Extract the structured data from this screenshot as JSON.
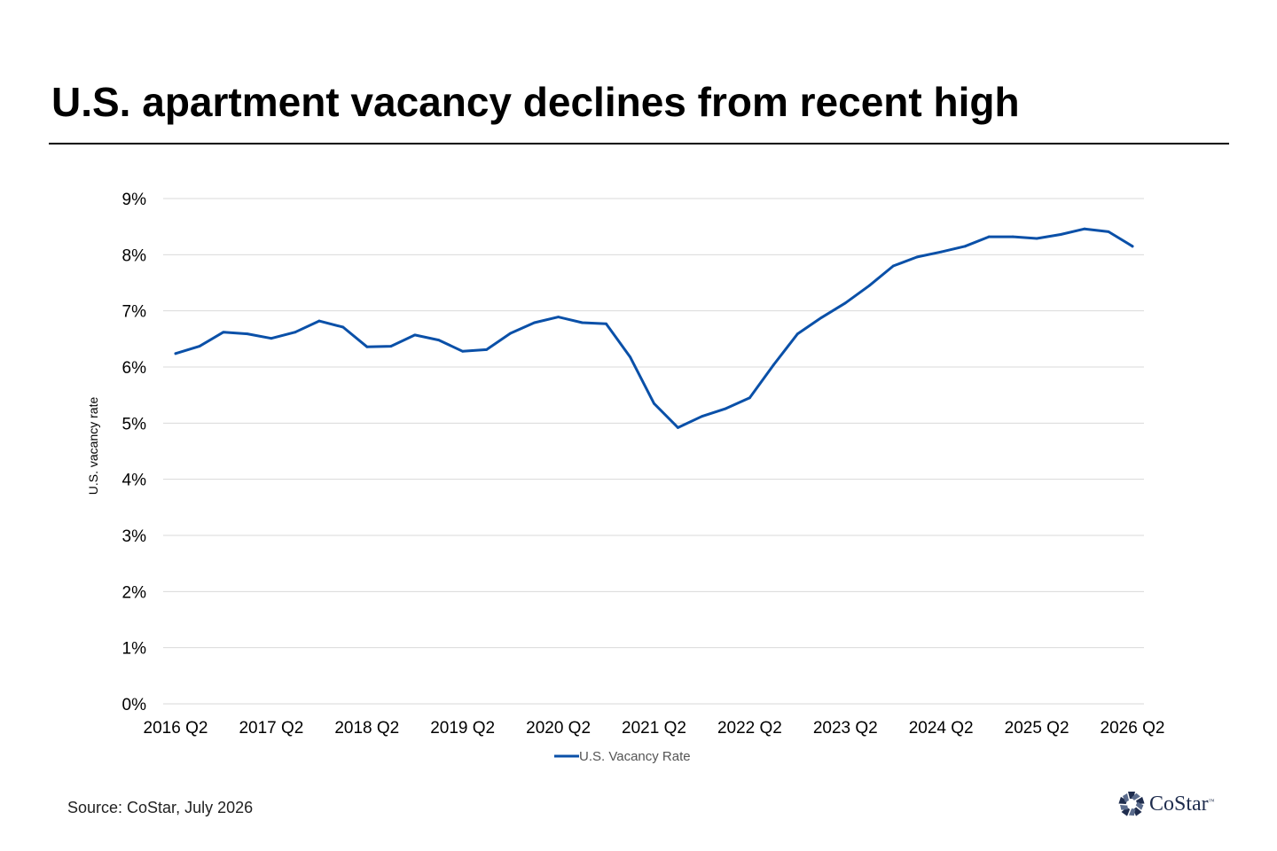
{
  "title": "U.S. apartment vacancy declines from recent high",
  "source": "Source: CoStar, July 2026",
  "logo": {
    "text": "CoStar",
    "trademark": "™",
    "icon": "costar-star-icon",
    "color": "#1f2d4e"
  },
  "colors": {
    "series": "#0a50a8",
    "grid": "#d9d9d9"
  },
  "chart_data": {
    "type": "line",
    "title": "U.S. apartment vacancy declines from recent high",
    "ylabel": "U.S. vacancy rate",
    "xlabel": "",
    "ylim": [
      0,
      9
    ],
    "y_ticks": [
      "0%",
      "1%",
      "2%",
      "3%",
      "4%",
      "5%",
      "6%",
      "7%",
      "8%",
      "9%"
    ],
    "grid": true,
    "legend_position": "bottom",
    "x_tick_labels": [
      "2016 Q2",
      "2017 Q2",
      "2018 Q2",
      "2019 Q2",
      "2020 Q2",
      "2021 Q2",
      "2022 Q2",
      "2023 Q2",
      "2024 Q2",
      "2025 Q2",
      "2026 Q2"
    ],
    "x": [
      "2016 Q2",
      "2016 Q3",
      "2016 Q4",
      "2017 Q1",
      "2017 Q2",
      "2017 Q3",
      "2017 Q4",
      "2018 Q1",
      "2018 Q2",
      "2018 Q3",
      "2018 Q4",
      "2019 Q1",
      "2019 Q2",
      "2019 Q3",
      "2019 Q4",
      "2020 Q1",
      "2020 Q2",
      "2020 Q3",
      "2020 Q4",
      "2021 Q1",
      "2021 Q2",
      "2021 Q3",
      "2021 Q4",
      "2022 Q1",
      "2022 Q2",
      "2022 Q3",
      "2022 Q4",
      "2023 Q1",
      "2023 Q2",
      "2023 Q3",
      "2023 Q4",
      "2024 Q1",
      "2024 Q2",
      "2024 Q3",
      "2024 Q4",
      "2025 Q1",
      "2025 Q2",
      "2025 Q3",
      "2025 Q4",
      "2026 Q1",
      "2026 Q2"
    ],
    "series": [
      {
        "name": "U.S. Vacancy Rate",
        "color": "#0a50a8",
        "values": [
          6.24,
          6.37,
          6.62,
          6.59,
          6.51,
          6.62,
          6.82,
          6.71,
          6.36,
          6.37,
          6.57,
          6.48,
          6.28,
          6.31,
          6.6,
          6.79,
          6.89,
          6.79,
          6.77,
          6.18,
          5.35,
          4.92,
          5.12,
          5.26,
          5.45,
          6.04,
          6.59,
          6.88,
          7.14,
          7.45,
          7.8,
          7.96,
          8.05,
          8.15,
          8.32,
          8.32,
          8.29,
          8.36,
          8.46,
          8.41,
          8.15
        ]
      }
    ]
  }
}
